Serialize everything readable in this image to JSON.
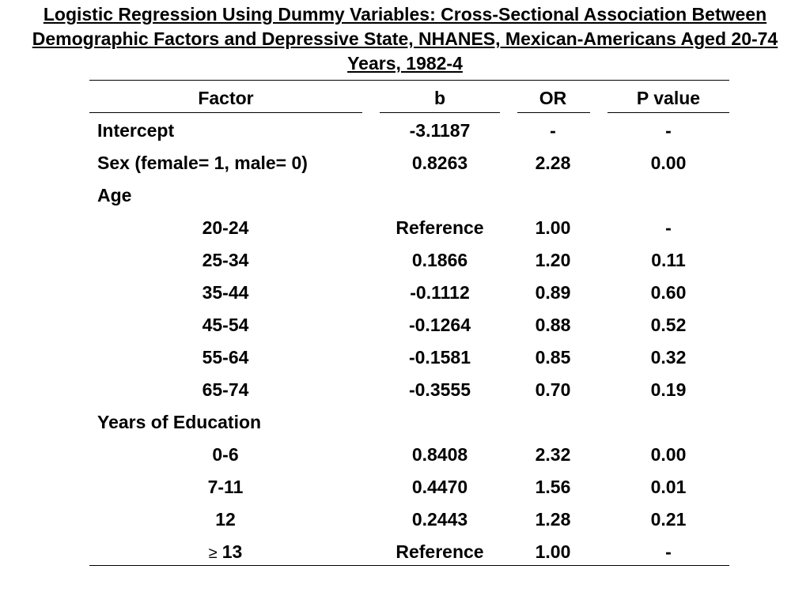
{
  "title": "Logistic Regression Using Dummy Variables: Cross-Sectional Association Between Demographic Factors and Depressive State, NHANES, Mexican-Americans Aged 20-74 Years, 1982-4",
  "headers": {
    "factor": "Factor",
    "b": "b",
    "or": "OR",
    "p": "P value"
  },
  "rows": [
    {
      "factor": "Intercept",
      "b": "-3.1187",
      "or": "-",
      "p": "-"
    },
    {
      "factor": "Sex (female= 1, male= 0)",
      "b": "0.8263",
      "or": "2.28",
      "p": "0.00"
    },
    {
      "factor": "Age",
      "b": "",
      "or": "",
      "p": ""
    },
    {
      "factor": "20-24",
      "b": "Reference",
      "or": "1.00",
      "p": "-"
    },
    {
      "factor": "25-34",
      "b": "0.1866",
      "or": "1.20",
      "p": "0.11"
    },
    {
      "factor": "35-44",
      "b": "-0.1112",
      "or": "0.89",
      "p": "0.60"
    },
    {
      "factor": "45-54",
      "b": "-0.1264",
      "or": "0.88",
      "p": "0.52"
    },
    {
      "factor": "55-64",
      "b": "-0.1581",
      "or": "0.85",
      "p": "0.32"
    },
    {
      "factor": "65-74",
      "b": "-0.3555",
      "or": "0.70",
      "p": "0.19"
    },
    {
      "factor": "Years of Education",
      "b": "",
      "or": "",
      "p": ""
    },
    {
      "factor": "0-6",
      "b": "0.8408",
      "or": "2.32",
      "p": "0.00"
    },
    {
      "factor": "7-11",
      "b": "0.4470",
      "or": "1.56",
      "p": "0.01"
    },
    {
      "factor": "12",
      "b": "0.2443",
      "or": "1.28",
      "p": "0.21"
    },
    {
      "factor": "13",
      "factor_prefix_symbol": "≥",
      "b": "Reference",
      "or": "1.00",
      "p": "-"
    }
  ]
}
